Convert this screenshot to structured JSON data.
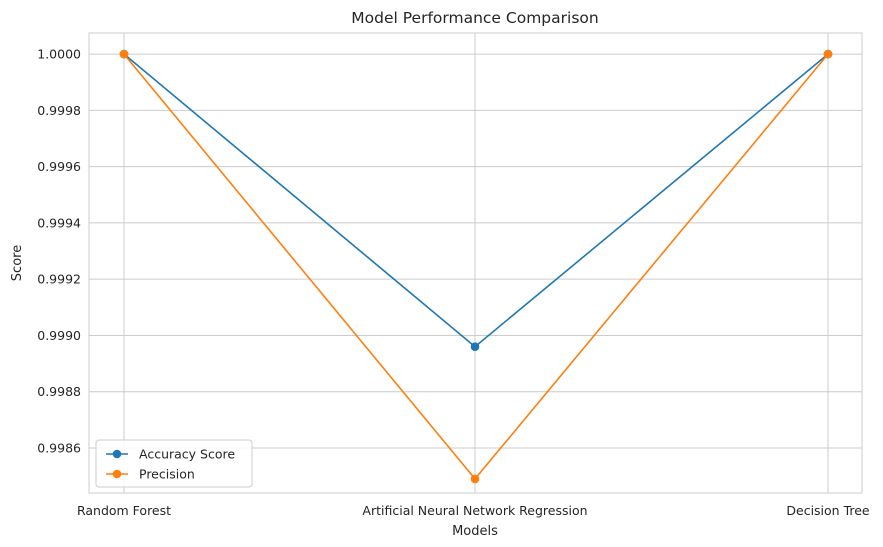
{
  "chart_data": {
    "type": "line",
    "title": "Model Performance Comparison",
    "xlabel": "Models",
    "ylabel": "Score",
    "categories": [
      "Random Forest",
      "Artificial Neural Network Regression",
      "Decision Tree"
    ],
    "series": [
      {
        "name": "Accuracy Score",
        "color": "#1f77b4",
        "values": [
          1.0,
          0.99896,
          1.0
        ]
      },
      {
        "name": "Precision",
        "color": "#ff7f0e",
        "values": [
          1.0,
          0.99849,
          1.0
        ]
      }
    ],
    "ylim": [
      0.99844,
      1.000075
    ],
    "yticks": [
      "0.9986",
      "0.9988",
      "0.9990",
      "0.9992",
      "0.9994",
      "0.9996",
      "0.9998",
      "1.0000"
    ],
    "grid": true,
    "legend_position": "lower-left",
    "marker": "circle"
  }
}
